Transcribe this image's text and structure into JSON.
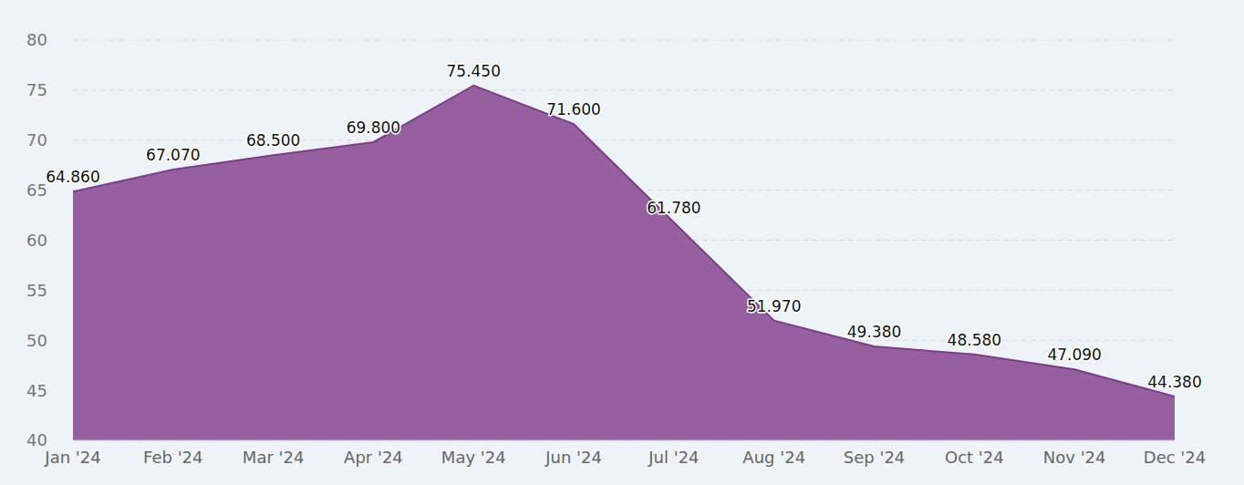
{
  "chart_data": {
    "type": "area",
    "categories": [
      "Jan '24",
      "Feb '24",
      "Mar '24",
      "Apr '24",
      "May '24",
      "Jun '24",
      "Jul '24",
      "Aug '24",
      "Sep '24",
      "Oct '24",
      "Nov '24",
      "Dec '24"
    ],
    "values": [
      64.86,
      67.07,
      68.5,
      69.8,
      75.45,
      71.6,
      61.78,
      51.97,
      49.38,
      48.58,
      47.09,
      44.38
    ],
    "value_labels": [
      "64.860",
      "67.070",
      "68.500",
      "69.800",
      "75.450",
      "71.600",
      "61.780",
      "51.970",
      "49.380",
      "48.580",
      "47.090",
      "44.380"
    ],
    "color": "#9660a0",
    "ylim": [
      40,
      80
    ],
    "yticks": [
      40,
      45,
      50,
      55,
      60,
      65,
      70,
      75,
      80
    ],
    "grid": true,
    "data_labels": true
  }
}
